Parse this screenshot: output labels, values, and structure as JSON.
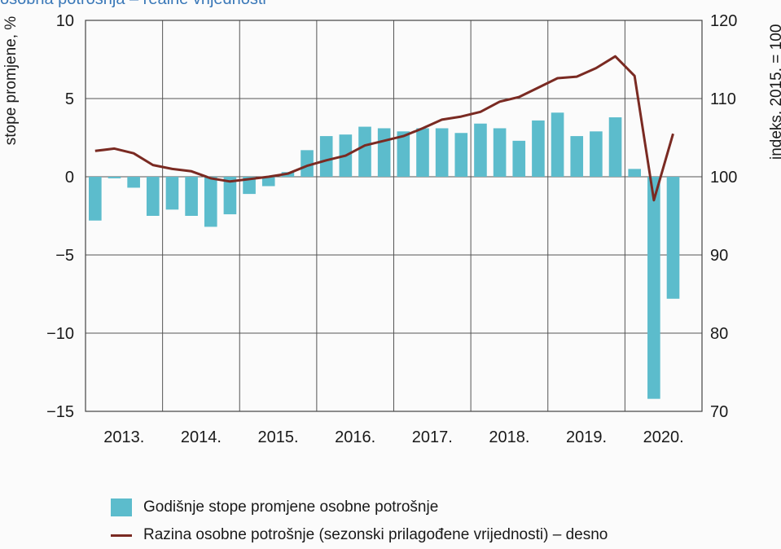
{
  "title": "osobna potrošnja – realne vrijednosti",
  "chart_data": {
    "type": "bar",
    "title": "osobna potrošnja – realne vrijednosti",
    "ylabel_left": "stope promjene, %",
    "ylabel_right": "indeks, 2015. = 100",
    "ylim_left": [
      -15,
      10
    ],
    "ylim_right": [
      70,
      120
    ],
    "yticks_left": [
      10,
      5,
      0,
      -5,
      -10,
      -15
    ],
    "yticks_left_labels": [
      "10",
      "5",
      "0",
      "−5",
      "−10",
      "−15"
    ],
    "yticks_right": [
      120,
      110,
      100,
      90,
      80,
      70
    ],
    "year_labels": [
      "2013.",
      "2014.",
      "2015.",
      "2016.",
      "2017.",
      "2018.",
      "2019.",
      "2020."
    ],
    "quarters": [
      "2013Q1",
      "2013Q2",
      "2013Q3",
      "2013Q4",
      "2014Q1",
      "2014Q2",
      "2014Q3",
      "2014Q4",
      "2015Q1",
      "2015Q2",
      "2015Q3",
      "2015Q4",
      "2016Q1",
      "2016Q2",
      "2016Q3",
      "2016Q4",
      "2017Q1",
      "2017Q2",
      "2017Q3",
      "2017Q4",
      "2018Q1",
      "2018Q2",
      "2018Q3",
      "2018Q4",
      "2019Q1",
      "2019Q2",
      "2019Q3",
      "2019Q4",
      "2020Q1",
      "2020Q2",
      "2020Q3"
    ],
    "grid": true,
    "legend_position": "bottom",
    "series": [
      {
        "name": "Godišnje stope promjene osobne potrošnje",
        "type": "bar",
        "axis": "left",
        "color": "#5cbccc",
        "values": [
          -2.8,
          -0.1,
          -0.7,
          -2.5,
          -2.1,
          -2.5,
          -3.2,
          -2.4,
          -1.1,
          -0.6,
          0.3,
          1.7,
          2.6,
          2.7,
          3.2,
          3.1,
          2.9,
          3.1,
          3.1,
          2.8,
          3.4,
          3.1,
          2.3,
          3.6,
          4.1,
          2.6,
          2.9,
          3.8,
          0.5,
          -14.2,
          -7.8
        ]
      },
      {
        "name": "Razina osobne potrošnje (sezonski prilagođene vrijednosti) – desno",
        "type": "line",
        "axis": "right",
        "color": "#7a2a22",
        "values": [
          103.3,
          103.6,
          103.0,
          101.5,
          101.0,
          100.7,
          99.8,
          99.4,
          99.7,
          100.0,
          100.4,
          101.4,
          102.1,
          102.7,
          104.0,
          104.6,
          105.2,
          106.2,
          107.3,
          107.7,
          108.3,
          109.6,
          110.2,
          111.4,
          112.6,
          112.8,
          113.9,
          115.4,
          112.9,
          97.0,
          105.5
        ]
      }
    ]
  }
}
